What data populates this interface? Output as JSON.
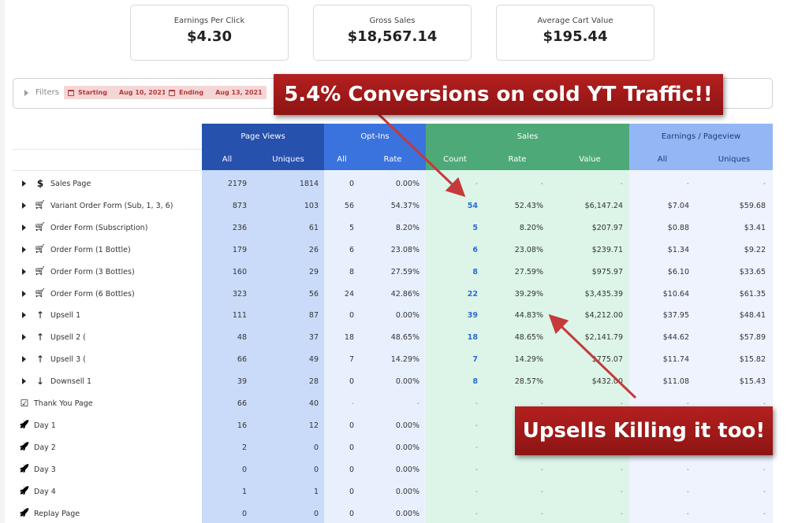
{
  "kpis": [
    {
      "label": "Earnings Per Click",
      "value": "$4.30"
    },
    {
      "label": "Gross Sales",
      "value": "$18,567.14"
    },
    {
      "label": "Average Cart Value",
      "value": "$195.44"
    }
  ],
  "filters": {
    "label": "Filters",
    "starting_label": "Starting",
    "starting_date": "Aug 10, 2021",
    "ending_label": "Ending",
    "ending_date": "Aug 13, 2021"
  },
  "groups": {
    "page_views": "Page Views",
    "opt_ins": "Opt-Ins",
    "sales": "Sales",
    "earnings": "Earnings / Pageview"
  },
  "subheaders": {
    "pv_all": "All",
    "pv_uniques": "Uniques",
    "oi_all": "All",
    "oi_rate": "Rate",
    "s_count": "Count",
    "s_rate": "Rate",
    "s_value": "Value",
    "e_all": "All",
    "e_uniques": "Uniques"
  },
  "rows": [
    {
      "icon": "dollar-icon",
      "glyph": "$",
      "toggle": true,
      "name": "Sales Page",
      "pv_all": "2179",
      "pv_uniques": "1814",
      "oi_all": "0",
      "oi_rate": "0.00%",
      "s_count": "-",
      "s_rate": "-",
      "s_value": "-",
      "e_all": "-",
      "e_uniques": "-"
    },
    {
      "icon": "cart-icon",
      "glyph": "🛒",
      "toggle": true,
      "name": "Variant Order Form (Sub, 1, 3, 6)",
      "pv_all": "873",
      "pv_uniques": "103",
      "oi_all": "56",
      "oi_rate": "54.37%",
      "s_count": "54",
      "s_rate": "52.43%",
      "s_value": "$6,147.24",
      "e_all": "$7.04",
      "e_uniques": "$59.68"
    },
    {
      "icon": "cart-icon",
      "glyph": "🛒",
      "toggle": true,
      "name": "Order Form (Subscription)",
      "pv_all": "236",
      "pv_uniques": "61",
      "oi_all": "5",
      "oi_rate": "8.20%",
      "s_count": "5",
      "s_rate": "8.20%",
      "s_value": "$207.97",
      "e_all": "$0.88",
      "e_uniques": "$3.41"
    },
    {
      "icon": "cart-icon",
      "glyph": "🛒",
      "toggle": true,
      "name": "Order Form (1 Bottle)",
      "pv_all": "179",
      "pv_uniques": "26",
      "oi_all": "6",
      "oi_rate": "23.08%",
      "s_count": "6",
      "s_rate": "23.08%",
      "s_value": "$239.71",
      "e_all": "$1.34",
      "e_uniques": "$9.22"
    },
    {
      "icon": "cart-icon",
      "glyph": "🛒",
      "toggle": true,
      "name": "Order Form (3 Bottles)",
      "pv_all": "160",
      "pv_uniques": "29",
      "oi_all": "8",
      "oi_rate": "27.59%",
      "s_count": "8",
      "s_rate": "27.59%",
      "s_value": "$975.97",
      "e_all": "$6.10",
      "e_uniques": "$33.65"
    },
    {
      "icon": "cart-icon",
      "glyph": "🛒",
      "toggle": true,
      "name": "Order Form (6 Bottles)",
      "pv_all": "323",
      "pv_uniques": "56",
      "oi_all": "24",
      "oi_rate": "42.86%",
      "s_count": "22",
      "s_rate": "39.29%",
      "s_value": "$3,435.39",
      "e_all": "$10.64",
      "e_uniques": "$61.35"
    },
    {
      "icon": "arrow-up-icon",
      "glyph": "↑",
      "toggle": true,
      "name": "Upsell 1",
      "pv_all": "111",
      "pv_uniques": "87",
      "oi_all": "0",
      "oi_rate": "0.00%",
      "s_count": "39",
      "s_rate": "44.83%",
      "s_value": "$4,212.00",
      "e_all": "$37.95",
      "e_uniques": "$48.41"
    },
    {
      "icon": "arrow-up-icon",
      "glyph": "↑",
      "toggle": true,
      "name": "Upsell 2 (",
      "pv_all": "48",
      "pv_uniques": "37",
      "oi_all": "18",
      "oi_rate": "48.65%",
      "s_count": "18",
      "s_rate": "48.65%",
      "s_value": "$2,141.79",
      "e_all": "$44.62",
      "e_uniques": "$57.89"
    },
    {
      "icon": "arrow-up-icon",
      "glyph": "↑",
      "toggle": true,
      "name": "Upsell 3 (",
      "pv_all": "66",
      "pv_uniques": "49",
      "oi_all": "7",
      "oi_rate": "14.29%",
      "s_count": "7",
      "s_rate": "14.29%",
      "s_value": "$775.07",
      "e_all": "$11.74",
      "e_uniques": "$15.82"
    },
    {
      "icon": "arrow-down-icon",
      "glyph": "↓",
      "toggle": true,
      "name": "Downsell 1",
      "pv_all": "39",
      "pv_uniques": "28",
      "oi_all": "0",
      "oi_rate": "0.00%",
      "s_count": "8",
      "s_rate": "28.57%",
      "s_value": "$432.00",
      "e_all": "$11.08",
      "e_uniques": "$15.43"
    },
    {
      "icon": "checkbox-icon",
      "glyph": "☑",
      "toggle": false,
      "name": "Thank You Page",
      "pv_all": "66",
      "pv_uniques": "40",
      "oi_all": "-",
      "oi_rate": "-",
      "s_count": "-",
      "s_rate": "-",
      "s_value": "-",
      "e_all": "-",
      "e_uniques": "-"
    },
    {
      "icon": "rocket-icon",
      "glyph": "🚀",
      "toggle": false,
      "name": "Day 1",
      "pv_all": "16",
      "pv_uniques": "12",
      "oi_all": "0",
      "oi_rate": "0.00%",
      "s_count": "-",
      "s_rate": "-",
      "s_value": "-",
      "e_all": "-",
      "e_uniques": "-"
    },
    {
      "icon": "rocket-icon",
      "glyph": "🚀",
      "toggle": false,
      "name": "Day 2",
      "pv_all": "2",
      "pv_uniques": "0",
      "oi_all": "0",
      "oi_rate": "0.00%",
      "s_count": "-",
      "s_rate": "-",
      "s_value": "-",
      "e_all": "-",
      "e_uniques": "-"
    },
    {
      "icon": "rocket-icon",
      "glyph": "🚀",
      "toggle": false,
      "name": "Day 3",
      "pv_all": "0",
      "pv_uniques": "0",
      "oi_all": "0",
      "oi_rate": "0.00%",
      "s_count": "-",
      "s_rate": "-",
      "s_value": "-",
      "e_all": "-",
      "e_uniques": "-"
    },
    {
      "icon": "rocket-icon",
      "glyph": "🚀",
      "toggle": false,
      "name": "Day 4",
      "pv_all": "1",
      "pv_uniques": "1",
      "oi_all": "0",
      "oi_rate": "0.00%",
      "s_count": "-",
      "s_rate": "-",
      "s_value": "-",
      "e_all": "-",
      "e_uniques": "-"
    },
    {
      "icon": "rocket-icon",
      "glyph": "🚀",
      "toggle": false,
      "name": "Replay Page",
      "pv_all": "0",
      "pv_uniques": "0",
      "oi_all": "0",
      "oi_rate": "0.00%",
      "s_count": "-",
      "s_rate": "-",
      "s_value": "-",
      "e_all": "-",
      "e_uniques": "-"
    }
  ],
  "annotations": {
    "top_banner": "5.4% Conversions on cold YT Traffic!!",
    "bottom_banner": "Upsells Killing it too!"
  },
  "colors": {
    "page_views_header": "#2651ad",
    "page_views_body": "#c9dbf9",
    "opt_ins_header": "#3b73de",
    "opt_ins_body": "#e9f0fd",
    "sales_header": "#4ea978",
    "sales_body": "#dcf5e8",
    "earnings_header": "#93b7f5",
    "earnings_body": "#eef3fe",
    "banner": "#a61b1b",
    "accent_blue": "#2b6cd4"
  }
}
